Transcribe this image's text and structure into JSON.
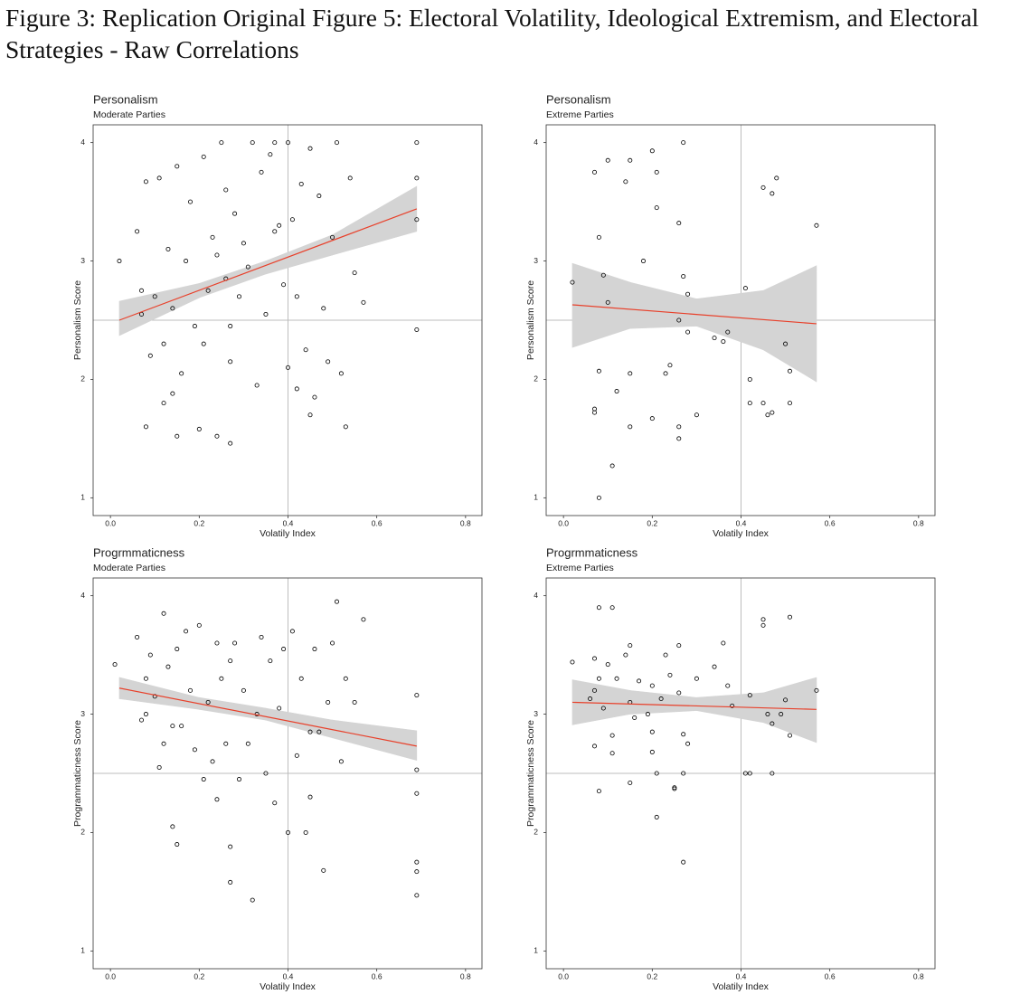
{
  "figure_title": "Figure 3: Replication Original Figure 5: Electoral Volatility, Ideological Extremism, and Electoral Strategies - Raw Correlations",
  "chart_data": [
    {
      "type": "scatter",
      "title": "Personalism",
      "subtitle": "Moderate Parties",
      "xlabel": "Volatily Index",
      "ylabel": "Personalism Score",
      "xlim": [
        -0.039,
        0.837
      ],
      "ylim": [
        0.85,
        4.15
      ],
      "xticks": [
        {
          "value": 0,
          "label": "0.0"
        },
        0.2,
        0.4,
        0.6,
        0.8
      ],
      "yticks": [
        1,
        2,
        3,
        4
      ],
      "vline": 0.4,
      "hline": 2.5,
      "color": "#000000",
      "x": [
        0.02,
        0.06,
        0.07,
        0.08,
        0.08,
        0.09,
        0.1,
        0.11,
        0.12,
        0.12,
        0.13,
        0.14,
        0.15,
        0.15,
        0.16,
        0.17,
        0.18,
        0.19,
        0.2,
        0.21,
        0.21,
        0.22,
        0.23,
        0.24,
        0.25,
        0.26,
        0.26,
        0.27,
        0.27,
        0.28,
        0.29,
        0.3,
        0.31,
        0.32,
        0.33,
        0.34,
        0.35,
        0.36,
        0.37,
        0.38,
        0.39,
        0.4,
        0.4,
        0.41,
        0.42,
        0.42,
        0.43,
        0.44,
        0.45,
        0.46,
        0.47,
        0.48,
        0.49,
        0.5,
        0.51,
        0.52,
        0.53,
        0.54,
        0.55,
        0.57,
        0.69,
        0.69,
        0.69,
        0.69,
        0.07,
        0.14,
        0.24,
        0.27,
        0.37,
        0.45
      ],
      "y": [
        3.0,
        3.25,
        2.75,
        1.6,
        3.67,
        2.2,
        2.7,
        3.7,
        2.3,
        1.8,
        3.1,
        2.6,
        1.52,
        3.8,
        2.05,
        3.0,
        3.5,
        2.45,
        1.58,
        3.88,
        2.3,
        2.75,
        3.2,
        1.52,
        4.0,
        2.85,
        3.6,
        1.46,
        2.15,
        3.4,
        2.7,
        3.15,
        2.95,
        4.0,
        1.95,
        3.75,
        2.55,
        3.9,
        4.0,
        3.3,
        2.8,
        4.0,
        2.1,
        3.35,
        2.7,
        1.92,
        3.65,
        2.25,
        3.95,
        1.85,
        3.55,
        2.6,
        2.15,
        3.2,
        4.0,
        2.05,
        1.6,
        3.7,
        2.9,
        2.65,
        4.0,
        3.7,
        3.35,
        2.42,
        2.55,
        1.88,
        3.05,
        2.45,
        3.25,
        1.7
      ],
      "fit": {
        "color": "#e8402a",
        "x": [
          0.02,
          0.69
        ],
        "y": [
          2.5,
          3.44
        ]
      },
      "band": {
        "color": "#d4d4d4",
        "x": [
          0.02,
          0.2,
          0.35,
          0.5,
          0.69
        ],
        "lower": [
          2.37,
          2.69,
          2.89,
          3.05,
          3.25
        ],
        "upper": [
          2.66,
          2.81,
          3.0,
          3.22,
          3.63
        ]
      }
    },
    {
      "type": "scatter",
      "title": "Personalism",
      "subtitle": "Extreme Parties",
      "xlabel": "Volatily Index",
      "ylabel": "Personalism Score",
      "xlim": [
        -0.039,
        0.837
      ],
      "ylim": [
        0.85,
        4.15
      ],
      "xticks": [
        {
          "value": 0,
          "label": "0.0"
        },
        0.2,
        0.4,
        0.6,
        0.8
      ],
      "yticks": [
        1,
        2,
        3,
        4
      ],
      "vline": 0.4,
      "hline": 2.5,
      "color": "#000000",
      "x": [
        0.02,
        0.07,
        0.07,
        0.07,
        0.08,
        0.08,
        0.08,
        0.09,
        0.1,
        0.1,
        0.11,
        0.12,
        0.14,
        0.15,
        0.15,
        0.15,
        0.18,
        0.2,
        0.2,
        0.21,
        0.21,
        0.23,
        0.24,
        0.26,
        0.26,
        0.26,
        0.26,
        0.27,
        0.27,
        0.28,
        0.28,
        0.3,
        0.34,
        0.36,
        0.37,
        0.41,
        0.42,
        0.42,
        0.45,
        0.45,
        0.46,
        0.47,
        0.48,
        0.47,
        0.5,
        0.51,
        0.51,
        0.57
      ],
      "y": [
        2.82,
        3.75,
        1.75,
        1.72,
        1.0,
        3.2,
        2.07,
        2.88,
        3.85,
        2.65,
        1.27,
        1.9,
        3.67,
        3.85,
        2.05,
        1.6,
        3.0,
        3.93,
        1.67,
        3.75,
        3.45,
        2.05,
        2.12,
        3.32,
        2.5,
        1.5,
        1.6,
        2.87,
        4.0,
        2.72,
        2.4,
        1.7,
        2.35,
        2.32,
        2.4,
        2.77,
        1.8,
        2.0,
        3.62,
        1.8,
        1.7,
        3.57,
        3.7,
        1.72,
        2.3,
        2.07,
        1.8,
        3.3
      ],
      "fit": {
        "color": "#e8402a",
        "x": [
          0.02,
          0.57
        ],
        "y": [
          2.63,
          2.47
        ]
      },
      "band": {
        "color": "#d4d4d4",
        "x": [
          0.02,
          0.15,
          0.3,
          0.45,
          0.57
        ],
        "lower": [
          2.27,
          2.43,
          2.45,
          2.25,
          1.98
        ],
        "upper": [
          2.98,
          2.82,
          2.68,
          2.75,
          2.96
        ]
      }
    },
    {
      "type": "scatter",
      "title": "Progrmmaticness",
      "subtitle": "Moderate Parties",
      "xlabel": "Volatily Index",
      "ylabel": "Programmaticness Score",
      "xlim": [
        -0.039,
        0.837
      ],
      "ylim": [
        0.85,
        4.15
      ],
      "xticks": [
        {
          "value": 0,
          "label": "0.0"
        },
        0.2,
        0.4,
        0.6,
        0.8
      ],
      "yticks": [
        1,
        2,
        3,
        4
      ],
      "vline": 0.4,
      "hline": 2.5,
      "color": "#000000",
      "x": [
        0.01,
        0.06,
        0.07,
        0.08,
        0.08,
        0.09,
        0.1,
        0.11,
        0.12,
        0.12,
        0.13,
        0.14,
        0.15,
        0.15,
        0.16,
        0.17,
        0.18,
        0.19,
        0.2,
        0.21,
        0.22,
        0.23,
        0.24,
        0.24,
        0.25,
        0.26,
        0.27,
        0.27,
        0.27,
        0.28,
        0.29,
        0.3,
        0.32,
        0.33,
        0.34,
        0.35,
        0.36,
        0.37,
        0.38,
        0.39,
        0.4,
        0.41,
        0.42,
        0.43,
        0.44,
        0.45,
        0.46,
        0.47,
        0.48,
        0.49,
        0.5,
        0.51,
        0.52,
        0.53,
        0.55,
        0.57,
        0.69,
        0.69,
        0.69,
        0.69,
        0.69,
        0.69,
        0.14,
        0.31,
        0.45
      ],
      "y": [
        3.42,
        3.65,
        2.95,
        3.3,
        3.0,
        3.5,
        3.15,
        2.55,
        3.85,
        2.75,
        3.4,
        2.05,
        1.9,
        3.55,
        2.9,
        3.7,
        3.2,
        2.7,
        3.75,
        2.45,
        3.1,
        2.6,
        2.28,
        3.6,
        3.3,
        2.75,
        1.88,
        1.58,
        3.45,
        3.6,
        2.45,
        3.2,
        1.43,
        3.0,
        3.65,
        2.5,
        3.45,
        2.25,
        3.05,
        3.55,
        2.0,
        3.7,
        2.65,
        3.3,
        2.0,
        2.3,
        3.55,
        2.85,
        1.68,
        3.1,
        3.6,
        3.95,
        2.6,
        3.3,
        3.1,
        3.8,
        3.16,
        2.53,
        2.33,
        1.75,
        1.67,
        1.47,
        2.9,
        2.75,
        2.85
      ],
      "fit": {
        "color": "#e8402a",
        "x": [
          0.02,
          0.69
        ],
        "y": [
          3.22,
          2.73
        ]
      },
      "band": {
        "color": "#d4d4d4",
        "x": [
          0.02,
          0.2,
          0.35,
          0.5,
          0.69
        ],
        "lower": [
          3.13,
          3.04,
          2.95,
          2.8,
          2.61
        ],
        "upper": [
          3.31,
          3.14,
          3.05,
          2.95,
          2.86
        ]
      }
    },
    {
      "type": "scatter",
      "title": "Progrmmaticness",
      "subtitle": "Extreme Parties",
      "xlabel": "Volatily Index",
      "ylabel": "Programmaticness Score",
      "xlim": [
        -0.039,
        0.837
      ],
      "ylim": [
        0.85,
        4.15
      ],
      "xticks": [
        {
          "value": 0,
          "label": "0.0"
        },
        0.2,
        0.4,
        0.6,
        0.8
      ],
      "yticks": [
        1,
        2,
        3,
        4
      ],
      "vline": 0.4,
      "hline": 2.5,
      "color": "#000000",
      "x": [
        0.02,
        0.06,
        0.07,
        0.07,
        0.07,
        0.08,
        0.08,
        0.08,
        0.09,
        0.1,
        0.11,
        0.11,
        0.11,
        0.12,
        0.14,
        0.15,
        0.15,
        0.15,
        0.16,
        0.17,
        0.19,
        0.2,
        0.2,
        0.2,
        0.21,
        0.21,
        0.22,
        0.23,
        0.24,
        0.25,
        0.25,
        0.26,
        0.26,
        0.27,
        0.27,
        0.27,
        0.28,
        0.3,
        0.34,
        0.36,
        0.37,
        0.38,
        0.41,
        0.42,
        0.42,
        0.45,
        0.45,
        0.46,
        0.47,
        0.47,
        0.49,
        0.5,
        0.51,
        0.51,
        0.57
      ],
      "y": [
        3.44,
        3.13,
        3.47,
        3.2,
        2.73,
        3.9,
        2.35,
        3.3,
        3.05,
        3.42,
        3.9,
        2.82,
        2.67,
        3.3,
        3.5,
        3.58,
        3.1,
        2.42,
        2.97,
        3.28,
        3.0,
        3.24,
        2.85,
        2.68,
        2.5,
        2.13,
        3.13,
        3.5,
        3.33,
        2.38,
        2.37,
        3.58,
        3.18,
        2.83,
        2.5,
        1.75,
        2.75,
        3.3,
        3.4,
        3.6,
        3.24,
        3.07,
        2.5,
        2.5,
        3.16,
        3.8,
        3.75,
        3.0,
        2.92,
        2.5,
        3.0,
        3.12,
        3.82,
        2.82,
        3.2
      ],
      "fit": {
        "color": "#e8402a",
        "x": [
          0.02,
          0.57
        ],
        "y": [
          3.1,
          3.04
        ]
      },
      "band": {
        "color": "#d4d4d4",
        "x": [
          0.02,
          0.15,
          0.3,
          0.45,
          0.57
        ],
        "lower": [
          2.91,
          3.0,
          3.03,
          2.93,
          2.76
        ],
        "upper": [
          3.29,
          3.2,
          3.14,
          3.18,
          3.31
        ]
      }
    }
  ]
}
